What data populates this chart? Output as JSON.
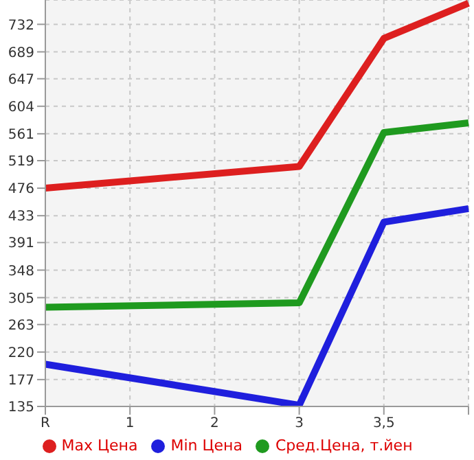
{
  "chart_data": {
    "type": "line",
    "categories": [
      "R",
      "1",
      "2",
      "3",
      "3,5",
      null
    ],
    "series": [
      {
        "name": "Max Цена",
        "color": "#dd1f1f",
        "values": [
          476,
          null,
          null,
          510,
          710,
          765
        ]
      },
      {
        "name": "Min Цена",
        "color": "#1f1fdd",
        "values": [
          201,
          null,
          null,
          137,
          423,
          444
        ]
      },
      {
        "name": "Сред.Цена, т.йен",
        "color": "#1f9a1f",
        "values": [
          290,
          null,
          null,
          297,
          563,
          578
        ]
      }
    ],
    "ylim": [
      135,
      770
    ],
    "yticks": [
      135,
      177,
      220,
      263,
      305,
      348,
      391,
      433,
      476,
      519,
      561,
      604,
      647,
      689,
      732
    ],
    "grid": true,
    "legend": "bottom",
    "marker": "none",
    "line_style": "solid"
  }
}
